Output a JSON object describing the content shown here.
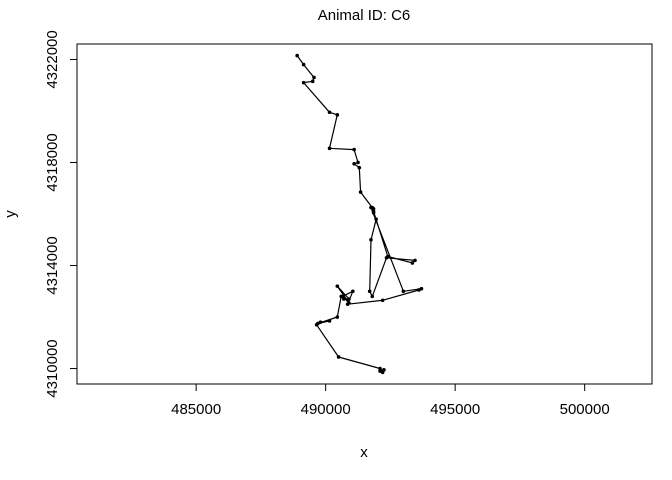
{
  "chart_data": {
    "type": "line",
    "title": "Animal ID: C6",
    "xlabel": "x",
    "ylabel": "y",
    "xlim": [
      480400,
      502600
    ],
    "ylim": [
      4309400,
      4322600
    ],
    "x_ticks": [
      485000,
      490000,
      495000,
      500000
    ],
    "y_ticks": [
      4310000,
      4314000,
      4318000,
      4322000
    ],
    "grid": false,
    "legend": "none",
    "colors": {
      "line": "#000000",
      "points": "#000000",
      "axes": "#000000",
      "background": "#ffffff"
    },
    "series": [
      {
        "x": [
          488900,
          489150,
          489550,
          489500,
          489150,
          490150,
          490450,
          490150,
          491100,
          491250,
          491100,
          491300,
          491350,
          491800,
          491850,
          491950,
          491750,
          491700,
          491800,
          492350,
          493450,
          493350,
          492400,
          491850,
          491850,
          491750,
          493000,
          493700,
          493600,
          492200,
          490850,
          491050,
          490650,
          490900,
          490450,
          490900,
          490700,
          490600,
          490450,
          489700,
          490150,
          489800,
          489650,
          490500,
          492100,
          492150,
          492250,
          492200,
          492100
        ],
        "y": [
          4322150,
          4321800,
          4321300,
          4321150,
          4321100,
          4319950,
          4319850,
          4318550,
          4318500,
          4318000,
          4317950,
          4317800,
          4316850,
          4316250,
          4316050,
          4315800,
          4315000,
          4313000,
          4312800,
          4314300,
          4314200,
          4314100,
          4314350,
          4316100,
          4316200,
          4316250,
          4313000,
          4313100,
          4313050,
          4312650,
          4312500,
          4313000,
          4312800,
          4312550,
          4313200,
          4312700,
          4312700,
          4312800,
          4312000,
          4311750,
          4311850,
          4311800,
          4311700,
          4310450,
          4310000,
          4309900,
          4309950,
          4309850,
          4309900
        ]
      }
    ]
  }
}
